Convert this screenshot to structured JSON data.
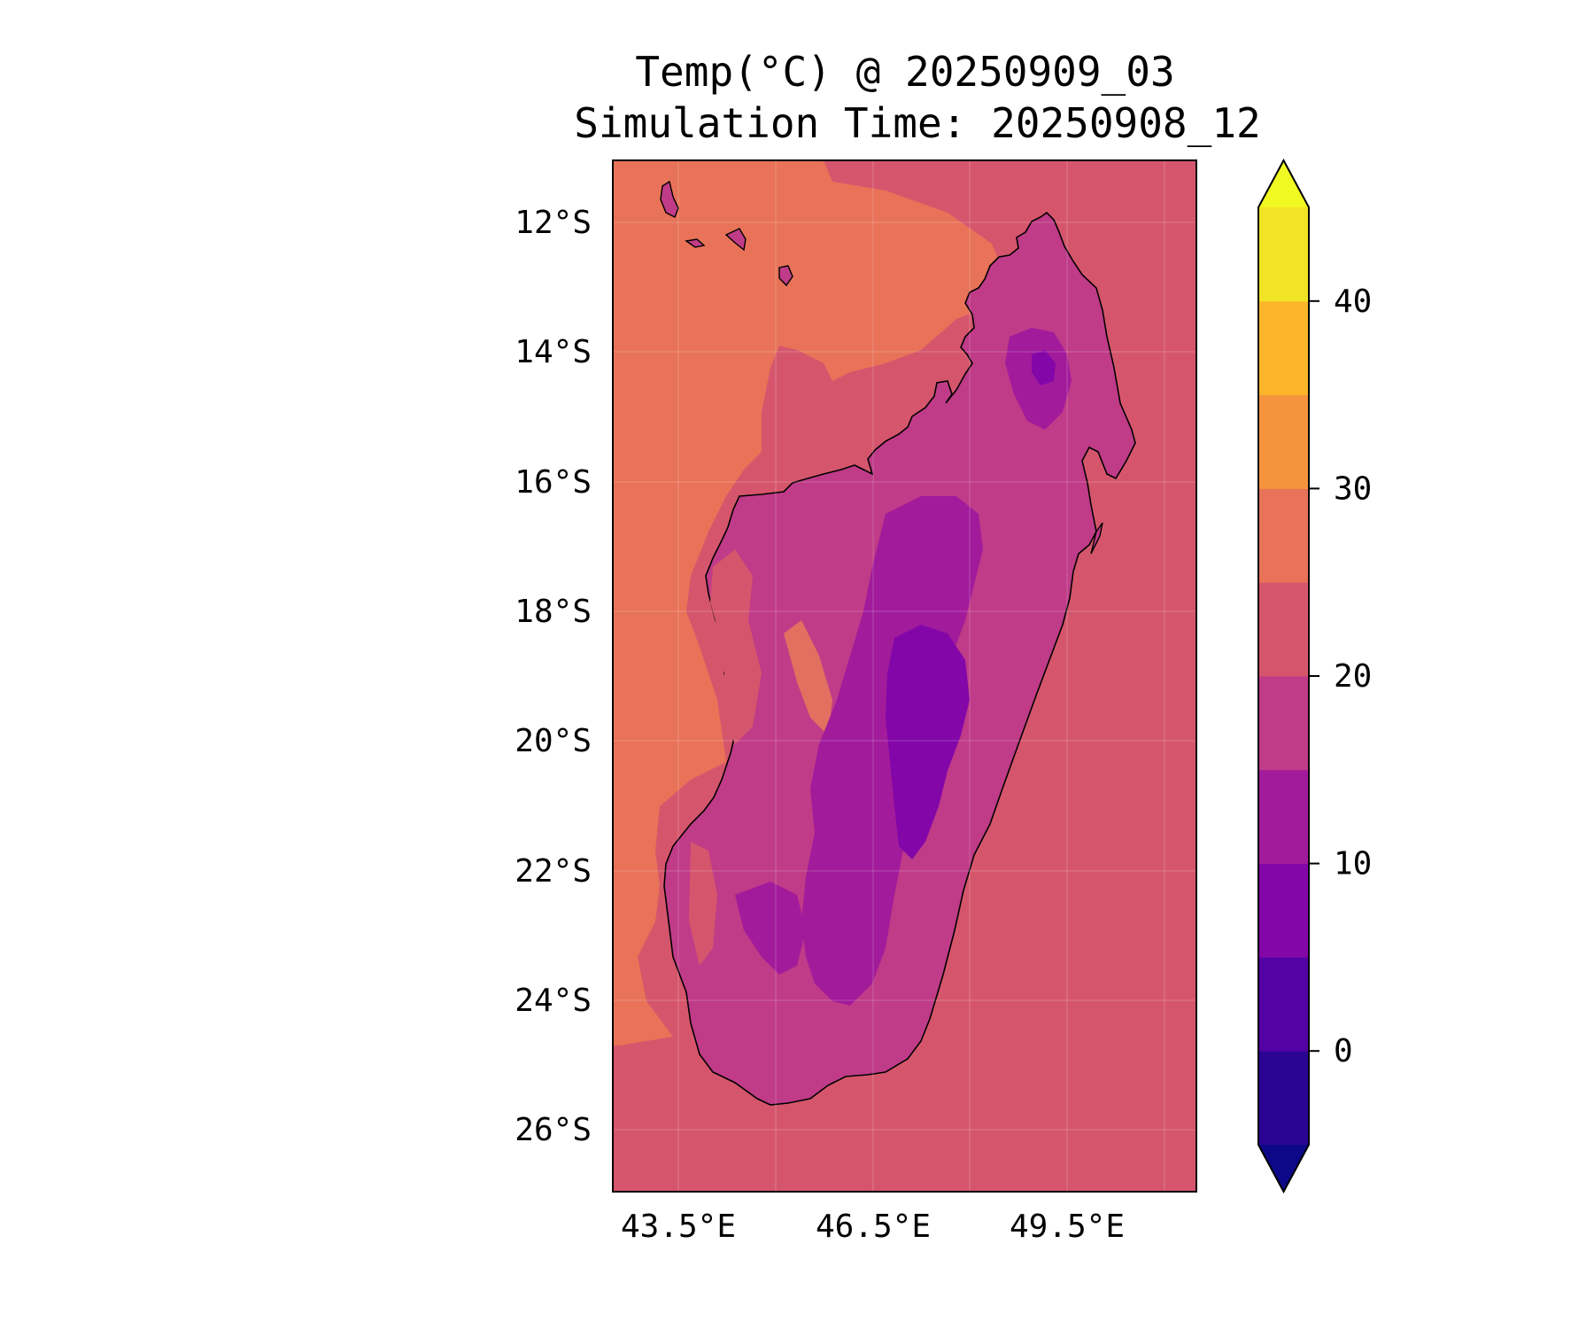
{
  "title": {
    "line1": "Temp(°C) @ 20250909_03",
    "line2": "Simulation Time: 20250908_12"
  },
  "map": {
    "region": "Madagascar",
    "lat_ticks": [
      "12°S",
      "14°S",
      "16°S",
      "18°S",
      "20°S",
      "22°S",
      "24°S",
      "26°S"
    ],
    "lon_ticks": [
      "43.5°E",
      "46.5°E",
      "49.5°E"
    ],
    "colors": {
      "sea_warm": "#e87358",
      "sea_cool": "#d5566c",
      "land_mid": "#c03b88",
      "land_cool": "#a21b9b",
      "land_cold": "#8306a8",
      "land_warm": "#e17060",
      "coastline": "#000000"
    }
  },
  "colorbar": {
    "ticks": [
      "0",
      "10",
      "20",
      "30",
      "40"
    ],
    "levels": [
      -5,
      0,
      5,
      10,
      15,
      20,
      25,
      30,
      35,
      40,
      45
    ],
    "band_colors": [
      "#2a0593",
      "#5302a3",
      "#8306a8",
      "#a21b9b",
      "#c03b88",
      "#d5566c",
      "#e87358",
      "#f6933d",
      "#fcb52b",
      "#f1e426"
    ],
    "under_color": "#0d0887",
    "over_color": "#f0f921",
    "extend": "both"
  }
}
